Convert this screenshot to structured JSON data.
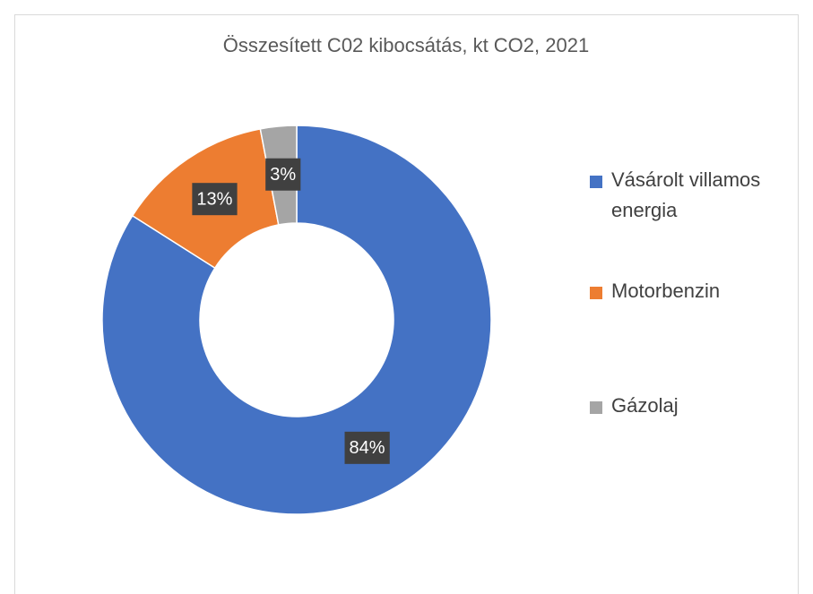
{
  "chart_data": {
    "type": "donut",
    "title": "Összesített C02 kibocsátás, kt CO2, 2021",
    "categories": [
      "Vásárolt villamos energia",
      "Motorbenzin",
      "Gázolaj"
    ],
    "values": [
      84,
      13,
      3
    ],
    "value_labels": [
      "84%",
      "13%",
      "3%"
    ],
    "colors": [
      "#4472c4",
      "#ed7d31",
      "#a5a5a5"
    ],
    "legend": "right"
  }
}
